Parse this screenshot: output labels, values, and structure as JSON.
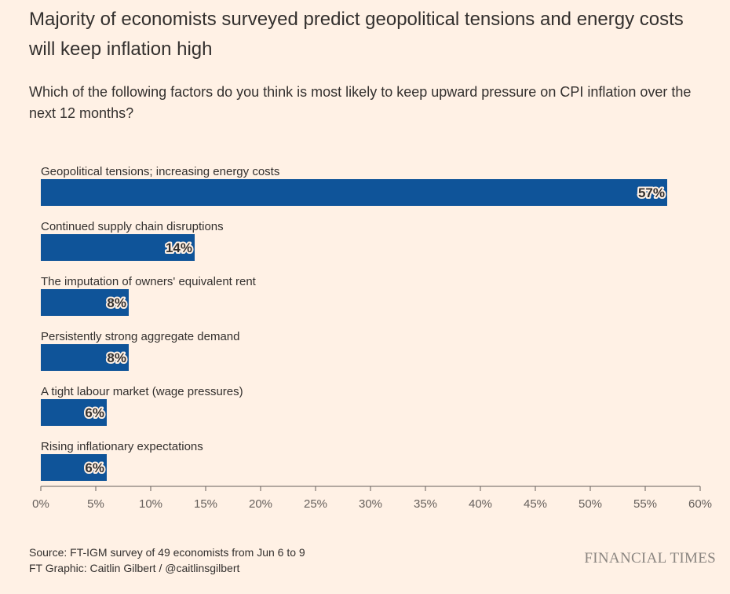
{
  "header": {
    "title": "Majority of economists surveyed predict geopolitical tensions and energy costs will keep inflation high",
    "subtitle": "Which of the following factors do you think is most likely to keep upward pressure on CPI inflation over the next 12 months?"
  },
  "footer": {
    "source": "Source: FT-IGM survey of 49 economists from Jun 6 to 9",
    "credit": "FT Graphic: Caitlin Gilbert / @caitlinsgilbert",
    "brand": "FINANCIAL TIMES"
  },
  "colors": {
    "background": "#fff1e5",
    "bar": "#0f5499",
    "text": "#33302e",
    "axis": "#66605c"
  },
  "chart_data": {
    "type": "bar",
    "orientation": "horizontal",
    "categories": [
      "Geopolitical tensions; increasing energy costs",
      "Continued supply chain disruptions",
      "The imputation of owners' equivalent rent",
      "Persistently strong aggregate demand",
      "A tight labour market (wage pressures)",
      "Rising inflationary expectations"
    ],
    "values": [
      57,
      14,
      8,
      8,
      6,
      6
    ],
    "value_labels": [
      "57%",
      "14%",
      "8%",
      "8%",
      "6%",
      "6%"
    ],
    "xlim": [
      0,
      60
    ],
    "x_ticks": [
      0,
      5,
      10,
      15,
      20,
      25,
      30,
      35,
      40,
      45,
      50,
      55,
      60
    ],
    "x_tick_labels": [
      "0%",
      "5%",
      "10%",
      "15%",
      "20%",
      "25%",
      "30%",
      "35%",
      "40%",
      "45%",
      "50%",
      "55%",
      "60%"
    ],
    "grid": false
  }
}
